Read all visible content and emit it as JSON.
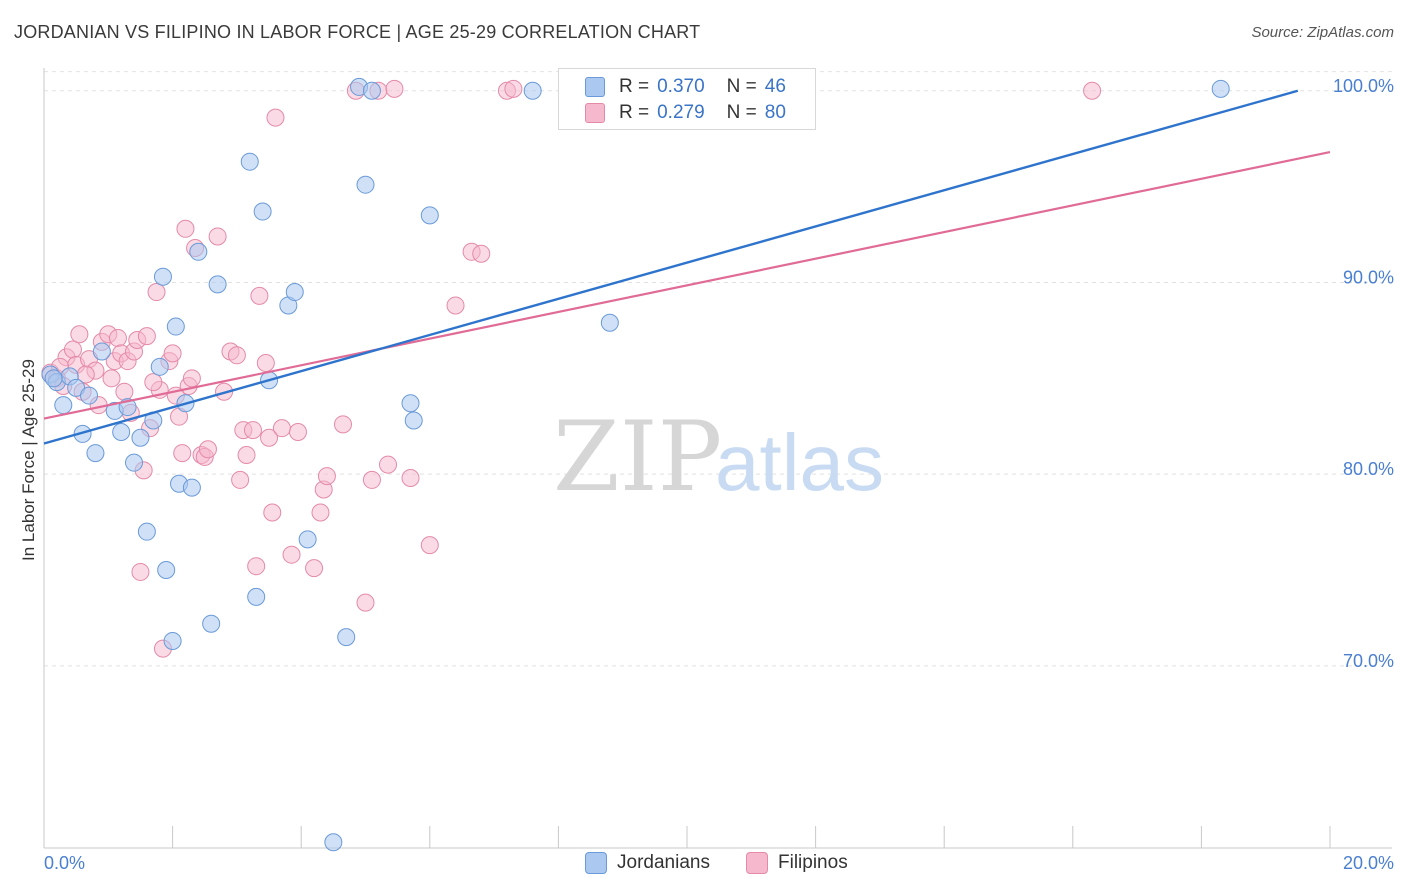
{
  "title": "JORDANIAN VS FILIPINO IN LABOR FORCE | AGE 25-29 CORRELATION CHART",
  "source": "Source: ZipAtlas.com",
  "watermark": {
    "zip": "ZIP",
    "atlas": "atlas"
  },
  "colors": {
    "jordanian_fill": "#aac8f0",
    "jordanian_stroke": "#6a9ad8",
    "jordanian_line": "#2f74cc",
    "filipino_fill": "#f6b8cc",
    "filipino_stroke": "#e48aa8",
    "filipino_line": "#e06b96",
    "axis_text": "#4a7fd0",
    "grid": "#e2e2e2"
  },
  "legend_top": [
    {
      "r_label": "R =",
      "r": "0.370",
      "n_label": "N =",
      "n": "46"
    },
    {
      "r_label": "R =",
      "r": "0.279",
      "n_label": "N =",
      "n": "80"
    }
  ],
  "chart_data": {
    "type": "scatter",
    "title": "JORDANIAN VS FILIPINO IN LABOR FORCE | AGE 25-29 CORRELATION CHART",
    "xlabel": "",
    "ylabel": "In Labor Force | Age 25-29",
    "xlim": [
      0,
      20
    ],
    "ylim": [
      60.5,
      101.5
    ],
    "x_tick_labels": [
      "0.0%",
      "20.0%"
    ],
    "y_tick_values": [
      70,
      80,
      90,
      100
    ],
    "y_tick_labels": [
      "70.0%",
      "80.0%",
      "90.0%",
      "100.0%"
    ],
    "legend_position": "bottom-center",
    "series": [
      {
        "name": "Jordanians",
        "r": 0.37,
        "n": 46,
        "trend": {
          "x0": 0,
          "y0": 81.6,
          "x1": 19.5,
          "y1": 100.0
        },
        "points": [
          [
            0.1,
            85.2
          ],
          [
            0.2,
            84.8
          ],
          [
            0.3,
            83.6
          ],
          [
            0.4,
            85.1
          ],
          [
            0.5,
            84.5
          ],
          [
            0.6,
            82.1
          ],
          [
            0.7,
            84.1
          ],
          [
            0.8,
            81.1
          ],
          [
            0.9,
            86.4
          ],
          [
            1.1,
            83.3
          ],
          [
            1.2,
            82.2
          ],
          [
            1.3,
            83.5
          ],
          [
            1.4,
            80.6
          ],
          [
            1.5,
            81.9
          ],
          [
            1.6,
            77.0
          ],
          [
            1.7,
            82.8
          ],
          [
            1.8,
            85.6
          ],
          [
            1.9,
            75.0
          ],
          [
            1.85,
            90.3
          ],
          [
            2.0,
            71.3
          ],
          [
            2.05,
            87.7
          ],
          [
            2.1,
            79.5
          ],
          [
            2.2,
            83.7
          ],
          [
            2.3,
            79.3
          ],
          [
            2.4,
            91.6
          ],
          [
            2.6,
            72.2
          ],
          [
            2.7,
            89.9
          ],
          [
            3.2,
            96.3
          ],
          [
            3.3,
            73.6
          ],
          [
            3.4,
            93.7
          ],
          [
            3.5,
            84.9
          ],
          [
            3.8,
            88.8
          ],
          [
            3.9,
            89.5
          ],
          [
            4.1,
            76.6
          ],
          [
            4.5,
            60.8
          ],
          [
            4.7,
            71.5
          ],
          [
            4.9,
            100.2
          ],
          [
            5.0,
            95.1
          ],
          [
            5.1,
            100.0
          ],
          [
            5.7,
            83.7
          ],
          [
            5.75,
            82.8
          ],
          [
            6.0,
            93.5
          ],
          [
            7.6,
            100.0
          ],
          [
            8.8,
            87.9
          ],
          [
            18.3,
            100.1
          ],
          [
            0.15,
            85.0
          ]
        ]
      },
      {
        "name": "Filipinos",
        "r": 0.279,
        "n": 80,
        "trend": {
          "x0": 0,
          "y0": 82.9,
          "x1": 20,
          "y1": 96.8
        },
        "points": [
          [
            0.1,
            85.3
          ],
          [
            0.2,
            85.0
          ],
          [
            0.3,
            84.6
          ],
          [
            0.35,
            86.1
          ],
          [
            0.45,
            86.5
          ],
          [
            0.5,
            85.7
          ],
          [
            0.55,
            87.3
          ],
          [
            0.6,
            84.3
          ],
          [
            0.7,
            86.0
          ],
          [
            0.8,
            85.4
          ],
          [
            0.85,
            83.6
          ],
          [
            0.9,
            86.9
          ],
          [
            1.0,
            87.3
          ],
          [
            1.05,
            85.0
          ],
          [
            1.1,
            85.9
          ],
          [
            1.15,
            87.1
          ],
          [
            1.2,
            86.3
          ],
          [
            1.25,
            84.3
          ],
          [
            1.3,
            85.9
          ],
          [
            1.35,
            83.2
          ],
          [
            1.4,
            86.4
          ],
          [
            1.45,
            87.0
          ],
          [
            1.5,
            74.9
          ],
          [
            1.55,
            80.2
          ],
          [
            1.6,
            87.2
          ],
          [
            1.65,
            82.4
          ],
          [
            1.75,
            89.5
          ],
          [
            1.8,
            84.4
          ],
          [
            1.85,
            70.9
          ],
          [
            1.95,
            85.9
          ],
          [
            2.0,
            86.3
          ],
          [
            2.1,
            83.0
          ],
          [
            2.15,
            81.1
          ],
          [
            2.2,
            92.8
          ],
          [
            2.25,
            84.6
          ],
          [
            2.3,
            85.0
          ],
          [
            2.35,
            91.8
          ],
          [
            2.45,
            81.0
          ],
          [
            2.5,
            80.9
          ],
          [
            2.55,
            81.3
          ],
          [
            2.7,
            92.4
          ],
          [
            2.8,
            84.3
          ],
          [
            2.9,
            86.4
          ],
          [
            3.0,
            86.2
          ],
          [
            3.05,
            79.7
          ],
          [
            3.1,
            82.3
          ],
          [
            3.15,
            81.0
          ],
          [
            3.25,
            82.3
          ],
          [
            3.3,
            75.2
          ],
          [
            3.35,
            89.3
          ],
          [
            3.45,
            85.8
          ],
          [
            3.5,
            81.9
          ],
          [
            3.55,
            78.0
          ],
          [
            3.6,
            98.6
          ],
          [
            3.7,
            82.4
          ],
          [
            3.85,
            75.8
          ],
          [
            3.95,
            82.2
          ],
          [
            4.2,
            75.1
          ],
          [
            4.3,
            78.0
          ],
          [
            4.35,
            79.2
          ],
          [
            4.4,
            79.9
          ],
          [
            4.65,
            82.6
          ],
          [
            4.85,
            100.0
          ],
          [
            5.0,
            73.3
          ],
          [
            5.1,
            79.7
          ],
          [
            5.2,
            100.0
          ],
          [
            5.35,
            80.5
          ],
          [
            5.45,
            100.1
          ],
          [
            5.7,
            79.8
          ],
          [
            6.0,
            76.3
          ],
          [
            6.4,
            88.8
          ],
          [
            6.65,
            91.6
          ],
          [
            6.8,
            91.5
          ],
          [
            7.2,
            100.0
          ],
          [
            7.3,
            100.1
          ],
          [
            16.3,
            100.0
          ],
          [
            0.25,
            85.6
          ],
          [
            0.65,
            85.2
          ],
          [
            1.7,
            84.8
          ],
          [
            2.05,
            84.1
          ]
        ]
      }
    ]
  },
  "legend_bottom": [
    "Jordanians",
    "Filipinos"
  ]
}
